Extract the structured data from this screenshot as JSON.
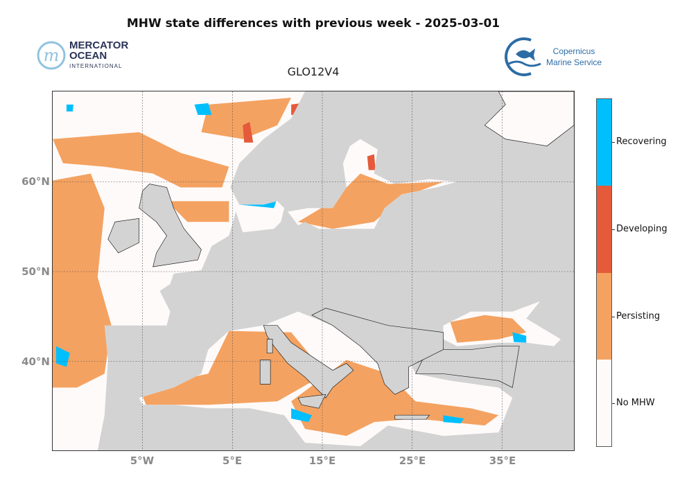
{
  "title": "MHW state differences with previous week - 2025-03-01",
  "subtitle": "GLO12V4",
  "logos": {
    "mercator": {
      "line1": "MERCATOR",
      "line2": "OCEAN",
      "line3": "INTERNATIONAL"
    },
    "copernicus": {
      "line1": "Copernicus",
      "line2": "Marine Service"
    }
  },
  "map": {
    "projection": "plate-carree",
    "lon_range": [
      -15,
      43
    ],
    "lat_range": [
      30,
      70
    ],
    "land_color": "#d3d3d3",
    "gridlines": true,
    "lat_labels": [
      "60°N",
      "50°N",
      "40°N"
    ],
    "lon_labels": [
      "5°W",
      "5°E",
      "15°E",
      "25°E",
      "35°E"
    ]
  },
  "legend": {
    "items": [
      {
        "label": "Recovering",
        "color": "#00bfff"
      },
      {
        "label": "Developing",
        "color": "#e45a3a"
      },
      {
        "label": "Persisting",
        "color": "#f4a261"
      },
      {
        "label": "No MHW",
        "color": "#fffafa"
      }
    ]
  }
}
